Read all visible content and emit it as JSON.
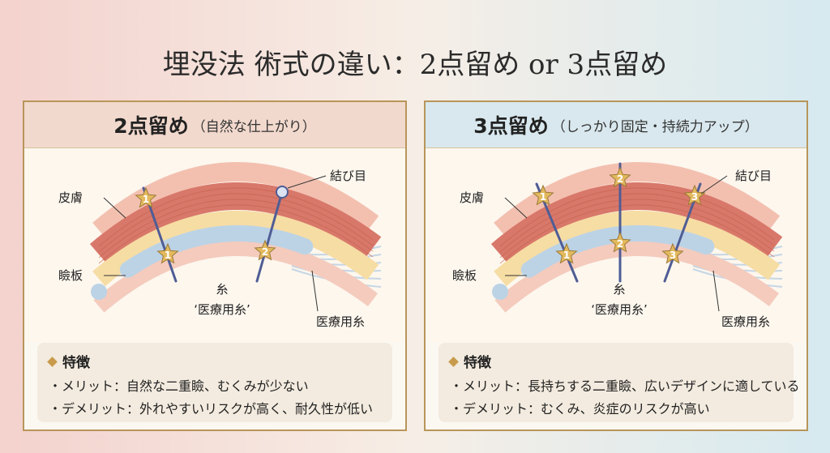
{
  "title": "埋没法 術式の違い：2点留め or 3点留め",
  "panels": [
    {
      "heading": "2点留め",
      "subheading": "（自然な仕上がり）",
      "labels": {
        "skin": "皮膚",
        "tarsus": "瞼板",
        "thread": "糸",
        "thread_note": "‘医療用糸’",
        "knot": "結び目",
        "medical_thread": "医療用糸"
      },
      "markers": [
        "1",
        "1",
        "2"
      ],
      "features": {
        "title": "特徴",
        "items": [
          "・メリット：自然な二重瞼、むくみが少ない",
          "・デメリット：外れやすいリスクが高く、耐久性が低い"
        ]
      }
    },
    {
      "heading": "3点留め",
      "subheading": "（しっかり固定・持続力アップ）",
      "labels": {
        "skin": "皮膚",
        "tarsus": "瞼板",
        "thread": "糸",
        "thread_note": "‘医療用糸’",
        "knot": "結び目",
        "medical_thread": "医療用糸"
      },
      "markers": [
        "1",
        "2",
        "3",
        "1",
        "2",
        "3"
      ],
      "features": {
        "title": "特徴",
        "items": [
          "・メリット：長持ちする二重瞼、広いデザインに適している",
          "・デメリット：むくみ、炎症のリスクが高い"
        ]
      }
    }
  ]
}
